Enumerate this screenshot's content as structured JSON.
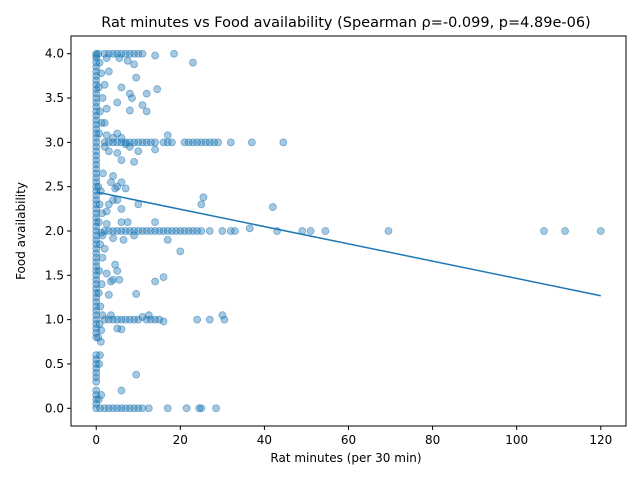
{
  "chart_data": {
    "type": "scatter",
    "title": "Rat minutes vs Food availability (Spearman ρ=-0.099, p=4.89e-06)",
    "xlabel": "Rat minutes (per 30 min)",
    "ylabel": "Food availability",
    "xlim": [
      -6,
      126
    ],
    "ylim": [
      -0.2,
      4.2
    ],
    "xticks": [
      "0",
      "20",
      "40",
      "60",
      "80",
      "100",
      "120"
    ],
    "yticks": [
      "0.0",
      "0.5",
      "1.0",
      "1.5",
      "2.0",
      "2.5",
      "3.0",
      "3.5",
      "4.0"
    ],
    "grid": false,
    "legend": "none",
    "point_color": "#1f77b4",
    "point_alpha": 0.4,
    "trend_color": "#1f77b4",
    "trend_line": {
      "x": [
        0,
        120
      ],
      "y": [
        2.44,
        1.27
      ]
    },
    "series": [
      {
        "values": [
          [
            0,
            4.0
          ],
          [
            0,
            3.98
          ],
          [
            0,
            3.95
          ],
          [
            0,
            3.9
          ],
          [
            0,
            3.85
          ],
          [
            0,
            3.8
          ],
          [
            0,
            3.75
          ],
          [
            0,
            3.7
          ],
          [
            0,
            3.65
          ],
          [
            0,
            3.6
          ],
          [
            0,
            3.55
          ],
          [
            0,
            3.5
          ],
          [
            0,
            3.45
          ],
          [
            0,
            3.4
          ],
          [
            0,
            3.35
          ],
          [
            0,
            3.3
          ],
          [
            0,
            3.25
          ],
          [
            0,
            3.2
          ],
          [
            0,
            3.15
          ],
          [
            0,
            3.1
          ],
          [
            0,
            3.05
          ],
          [
            0,
            3.0
          ],
          [
            0,
            2.95
          ],
          [
            0,
            2.9
          ],
          [
            0,
            2.85
          ],
          [
            0,
            2.8
          ],
          [
            0,
            2.75
          ],
          [
            0,
            2.7
          ],
          [
            0,
            2.65
          ],
          [
            0,
            2.6
          ],
          [
            0,
            2.55
          ],
          [
            0,
            2.5
          ],
          [
            0,
            2.45
          ],
          [
            0,
            2.4
          ],
          [
            0,
            2.35
          ],
          [
            0,
            2.3
          ],
          [
            0,
            2.25
          ],
          [
            0,
            2.2
          ],
          [
            0,
            2.15
          ],
          [
            0,
            2.1
          ],
          [
            0,
            2.05
          ],
          [
            0,
            2.0
          ],
          [
            0,
            1.95
          ],
          [
            0,
            1.9
          ],
          [
            0,
            1.85
          ],
          [
            0,
            1.8
          ],
          [
            0,
            1.75
          ],
          [
            0,
            1.7
          ],
          [
            0,
            1.65
          ],
          [
            0,
            1.6
          ],
          [
            0,
            1.55
          ],
          [
            0,
            1.5
          ],
          [
            0,
            1.45
          ],
          [
            0,
            1.4
          ],
          [
            0,
            1.35
          ],
          [
            0,
            1.3
          ],
          [
            0,
            1.25
          ],
          [
            0,
            1.2
          ],
          [
            0,
            1.15
          ],
          [
            0,
            1.1
          ],
          [
            0,
            1.05
          ],
          [
            0,
            1.0
          ],
          [
            0,
            0.95
          ],
          [
            0,
            0.9
          ],
          [
            0,
            0.85
          ],
          [
            0,
            0.8
          ],
          [
            0,
            0.6
          ],
          [
            0,
            0.55
          ],
          [
            0,
            0.5
          ],
          [
            0,
            0.45
          ],
          [
            0,
            0.4
          ],
          [
            0,
            0.35
          ],
          [
            0,
            0.3
          ],
          [
            0,
            0.2
          ],
          [
            0,
            0.15
          ],
          [
            0,
            0.1
          ],
          [
            0,
            0.05
          ],
          [
            0,
            0.0
          ],
          [
            0.5,
            4.0
          ],
          [
            0.8,
            3.9
          ],
          [
            1.2,
            3.78
          ],
          [
            0.6,
            3.62
          ],
          [
            1.5,
            3.5
          ],
          [
            0.9,
            3.35
          ],
          [
            1.3,
            3.22
          ],
          [
            0.7,
            3.1
          ],
          [
            1.6,
            2.65
          ],
          [
            0.5,
            2.5
          ],
          [
            1.1,
            2.45
          ],
          [
            0.8,
            2.3
          ],
          [
            1.4,
            2.2
          ],
          [
            0.6,
            2.1
          ],
          [
            1.2,
            1.98
          ],
          [
            0.9,
            1.85
          ],
          [
            1.5,
            1.7
          ],
          [
            0.7,
            1.55
          ],
          [
            1.3,
            1.4
          ],
          [
            0.6,
            1.3
          ],
          [
            1.0,
            1.15
          ],
          [
            0.8,
            0.95
          ],
          [
            1.2,
            0.88
          ],
          [
            0.5,
            0.8
          ],
          [
            1.1,
            0.75
          ],
          [
            0.9,
            0.6
          ],
          [
            0.7,
            0.5
          ],
          [
            1.2,
            0.15
          ],
          [
            0.6,
            0.1
          ],
          [
            0.9,
            0.0
          ],
          [
            2.0,
            4.0
          ],
          [
            3.0,
            4.0
          ],
          [
            4.0,
            4.0
          ],
          [
            5.0,
            4.0
          ],
          [
            5.5,
            3.95
          ],
          [
            6.0,
            4.0
          ],
          [
            7.0,
            4.0
          ],
          [
            8.0,
            4.0
          ],
          [
            9.0,
            4.0
          ],
          [
            10.0,
            4.0
          ],
          [
            11.0,
            4.0
          ],
          [
            14.0,
            3.98
          ],
          [
            18.5,
            4.0
          ],
          [
            23.0,
            3.9
          ],
          [
            2.5,
            3.95
          ],
          [
            7.5,
            3.92
          ],
          [
            9.0,
            3.88
          ],
          [
            3.0,
            3.8
          ],
          [
            9.5,
            3.73
          ],
          [
            2.0,
            3.65
          ],
          [
            6.0,
            3.62
          ],
          [
            8.0,
            3.55
          ],
          [
            8.5,
            3.5
          ],
          [
            14.5,
            3.6
          ],
          [
            12.0,
            3.55
          ],
          [
            5.0,
            3.45
          ],
          [
            11.0,
            3.42
          ],
          [
            2.5,
            3.38
          ],
          [
            8.0,
            3.36
          ],
          [
            12.0,
            3.35
          ],
          [
            2.0,
            3.22
          ],
          [
            2,
            3.0
          ],
          [
            3,
            3.0
          ],
          [
            4,
            3.0
          ],
          [
            5,
            3.0
          ],
          [
            6,
            3.0
          ],
          [
            7,
            3.0
          ],
          [
            8,
            3.0
          ],
          [
            9,
            3.0
          ],
          [
            10,
            3.0
          ],
          [
            11,
            3.0
          ],
          [
            12,
            3.0
          ],
          [
            13,
            3.0
          ],
          [
            14,
            3.0
          ],
          [
            16,
            3.0
          ],
          [
            17,
            3.0
          ],
          [
            18,
            3.0
          ],
          [
            21,
            3.0
          ],
          [
            22,
            3.0
          ],
          [
            23,
            3.0
          ],
          [
            24,
            3.0
          ],
          [
            25,
            3.0
          ],
          [
            26,
            3.0
          ],
          [
            27,
            3.0
          ],
          [
            28,
            3.0
          ],
          [
            29,
            3.0
          ],
          [
            32,
            3.0
          ],
          [
            37,
            3.0
          ],
          [
            44.5,
            3.0
          ],
          [
            2.5,
            3.08
          ],
          [
            5.0,
            3.1
          ],
          [
            6.0,
            3.05
          ],
          [
            8.0,
            2.95
          ],
          [
            3.0,
            2.9
          ],
          [
            5.0,
            2.88
          ],
          [
            6.0,
            2.8
          ],
          [
            9.0,
            2.78
          ],
          [
            10.0,
            2.9
          ],
          [
            14.0,
            2.92
          ],
          [
            17.0,
            3.08
          ],
          [
            2.0,
            2.95
          ],
          [
            4.0,
            3.05
          ],
          [
            7.0,
            2.98
          ],
          [
            4.0,
            2.62
          ],
          [
            5.0,
            2.5
          ],
          [
            6.0,
            2.55
          ],
          [
            3.5,
            2.55
          ],
          [
            4.5,
            2.48
          ],
          [
            7.0,
            2.48
          ],
          [
            5.0,
            2.35
          ],
          [
            3.0,
            2.3
          ],
          [
            4.0,
            2.35
          ],
          [
            6.0,
            2.25
          ],
          [
            10.0,
            2.3
          ],
          [
            2.5,
            2.22
          ],
          [
            25.0,
            2.3
          ],
          [
            25.5,
            2.38
          ],
          [
            42.0,
            2.27
          ],
          [
            2,
            2.0
          ],
          [
            3,
            2.0
          ],
          [
            4,
            2.0
          ],
          [
            5,
            2.0
          ],
          [
            6,
            2.0
          ],
          [
            7,
            2.0
          ],
          [
            8,
            2.0
          ],
          [
            9,
            2.0
          ],
          [
            10,
            2.0
          ],
          [
            11,
            2.0
          ],
          [
            12,
            2.0
          ],
          [
            13,
            2.0
          ],
          [
            14,
            2.0
          ],
          [
            15,
            2.0
          ],
          [
            16,
            2.0
          ],
          [
            17,
            2.0
          ],
          [
            18,
            2.0
          ],
          [
            19,
            2.0
          ],
          [
            20,
            2.0
          ],
          [
            21,
            2.0
          ],
          [
            22,
            2.0
          ],
          [
            23,
            2.0
          ],
          [
            24,
            2.0
          ],
          [
            25,
            2.0
          ],
          [
            27,
            2.0
          ],
          [
            30,
            2.0
          ],
          [
            32,
            2.0
          ],
          [
            33,
            2.0
          ],
          [
            36.5,
            2.03
          ],
          [
            43,
            2.0
          ],
          [
            49,
            2.0
          ],
          [
            51,
            2.0
          ],
          [
            54.5,
            2.0
          ],
          [
            69.5,
            2.0
          ],
          [
            106.5,
            2.0
          ],
          [
            111.5,
            2.0
          ],
          [
            120,
            2.0
          ],
          [
            2.5,
            2.08
          ],
          [
            6.0,
            2.1
          ],
          [
            7.5,
            2.1
          ],
          [
            14.0,
            2.1
          ],
          [
            1.5,
            1.95
          ],
          [
            4.0,
            1.92
          ],
          [
            6.5,
            1.9
          ],
          [
            9.0,
            1.95
          ],
          [
            17.0,
            1.9
          ],
          [
            20.0,
            1.77
          ],
          [
            2.0,
            1.8
          ],
          [
            4.5,
            1.62
          ],
          [
            2.5,
            1.52
          ],
          [
            5.0,
            1.55
          ],
          [
            16.0,
            1.48
          ],
          [
            14.0,
            1.43
          ],
          [
            3.5,
            1.43
          ],
          [
            5.5,
            1.45
          ],
          [
            4.0,
            1.45
          ],
          [
            3.0,
            1.28
          ],
          [
            9.5,
            1.29
          ],
          [
            2,
            1.0
          ],
          [
            3,
            1.0
          ],
          [
            4,
            1.0
          ],
          [
            5,
            1.0
          ],
          [
            6,
            1.0
          ],
          [
            7,
            1.0
          ],
          [
            8,
            1.0
          ],
          [
            9,
            1.0
          ],
          [
            10,
            1.0
          ],
          [
            12,
            1.0
          ],
          [
            13,
            1.0
          ],
          [
            14,
            1.0
          ],
          [
            15,
            1.0
          ],
          [
            16,
            0.98
          ],
          [
            24,
            1.0
          ],
          [
            27,
            1.0
          ],
          [
            30,
            1.05
          ],
          [
            30.5,
            1.0
          ],
          [
            11.0,
            1.03
          ],
          [
            12.5,
            1.05
          ],
          [
            3.5,
            1.05
          ],
          [
            1.5,
            1.05
          ],
          [
            5.0,
            0.9
          ],
          [
            6.0,
            0.89
          ],
          [
            6.0,
            0.2
          ],
          [
            9.5,
            0.38
          ],
          [
            2,
            0.0
          ],
          [
            3,
            0.0
          ],
          [
            4,
            0.0
          ],
          [
            5,
            0.0
          ],
          [
            6,
            0.0
          ],
          [
            7,
            0.0
          ],
          [
            8,
            0.0
          ],
          [
            9,
            0.0
          ],
          [
            10,
            0.0
          ],
          [
            11,
            0.0
          ],
          [
            12.5,
            0.0
          ],
          [
            17,
            0.0
          ],
          [
            21.5,
            0.0
          ],
          [
            24.5,
            0.0
          ],
          [
            25,
            0.0
          ],
          [
            28.5,
            0.0
          ]
        ]
      }
    ]
  }
}
